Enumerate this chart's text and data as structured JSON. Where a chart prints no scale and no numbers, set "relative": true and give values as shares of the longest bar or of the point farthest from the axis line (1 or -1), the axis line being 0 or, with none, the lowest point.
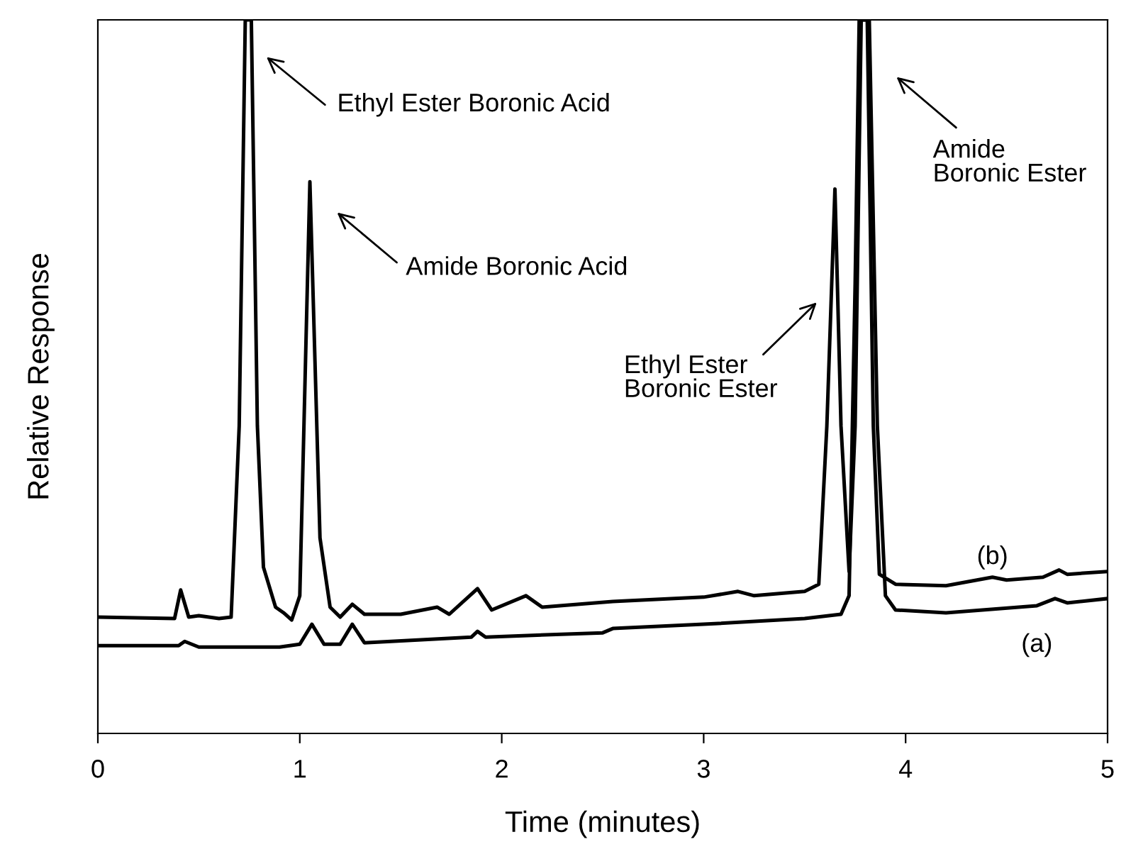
{
  "chart_data": {
    "type": "line",
    "relative": true,
    "xlabel": "Time (minutes)",
    "ylabel": "Relative Response",
    "xlim": [
      0,
      5
    ],
    "xticks": [
      0,
      1,
      2,
      3,
      4,
      5
    ],
    "grid": false,
    "legend": false,
    "marker": "none",
    "line_style": "solid",
    "series": [
      {
        "name": "(b)",
        "color": "#000000",
        "x": [
          0,
          0.38,
          0.41,
          0.45,
          0.5,
          0.6,
          0.66,
          0.7,
          0.73,
          0.76,
          0.79,
          0.82,
          0.88,
          0.92,
          0.96,
          1.0,
          1.05,
          1.1,
          1.15,
          1.2,
          1.26,
          1.32,
          1.5,
          1.68,
          1.74,
          1.88,
          1.95,
          2.12,
          2.2,
          2.55,
          3.0,
          3.17,
          3.25,
          3.5,
          3.57,
          3.61,
          3.65,
          3.68,
          3.72,
          3.75,
          3.78,
          3.81,
          3.84,
          3.87,
          3.95,
          4.2,
          4.43,
          4.5,
          4.68,
          4.76,
          4.8,
          5.0
        ],
        "values": [
          0.163,
          0.161,
          0.201,
          0.163,
          0.165,
          0.161,
          0.163,
          0.431,
          1,
          1,
          0.431,
          0.233,
          0.177,
          0.169,
          0.159,
          0.193,
          0.773,
          0.274,
          0.177,
          0.163,
          0.181,
          0.167,
          0.167,
          0.177,
          0.167,
          0.203,
          0.173,
          0.193,
          0.177,
          0.185,
          0.191,
          0.199,
          0.193,
          0.199,
          0.209,
          0.431,
          0.763,
          0.431,
          0.227,
          0.431,
          1,
          1,
          0.431,
          0.223,
          0.209,
          0.207,
          0.219,
          0.215,
          0.219,
          0.229,
          0.223,
          0.227
        ]
      },
      {
        "name": "(a)",
        "color": "#000000",
        "x": [
          0,
          0.4,
          0.43,
          0.5,
          0.9,
          1.0,
          1.06,
          1.12,
          1.2,
          1.26,
          1.32,
          1.85,
          1.88,
          1.92,
          2.5,
          2.55,
          3.0,
          3.5,
          3.68,
          3.72,
          3.75,
          3.77,
          3.82,
          3.86,
          3.9,
          3.95,
          4.2,
          4.65,
          4.74,
          4.8,
          5.0
        ],
        "values": [
          0.123,
          0.123,
          0.129,
          0.121,
          0.121,
          0.125,
          0.153,
          0.125,
          0.125,
          0.153,
          0.127,
          0.135,
          0.143,
          0.135,
          0.141,
          0.147,
          0.153,
          0.161,
          0.167,
          0.193,
          0.63,
          1,
          1,
          0.431,
          0.193,
          0.173,
          0.169,
          0.179,
          0.189,
          0.183,
          0.189
        ]
      }
    ],
    "annotations": [
      "Ethyl Ester Boronic Acid",
      "Amide Boronic Acid",
      "Ethyl Ester\nBoronic Ester",
      "Amide\nBoronic Ester"
    ]
  }
}
